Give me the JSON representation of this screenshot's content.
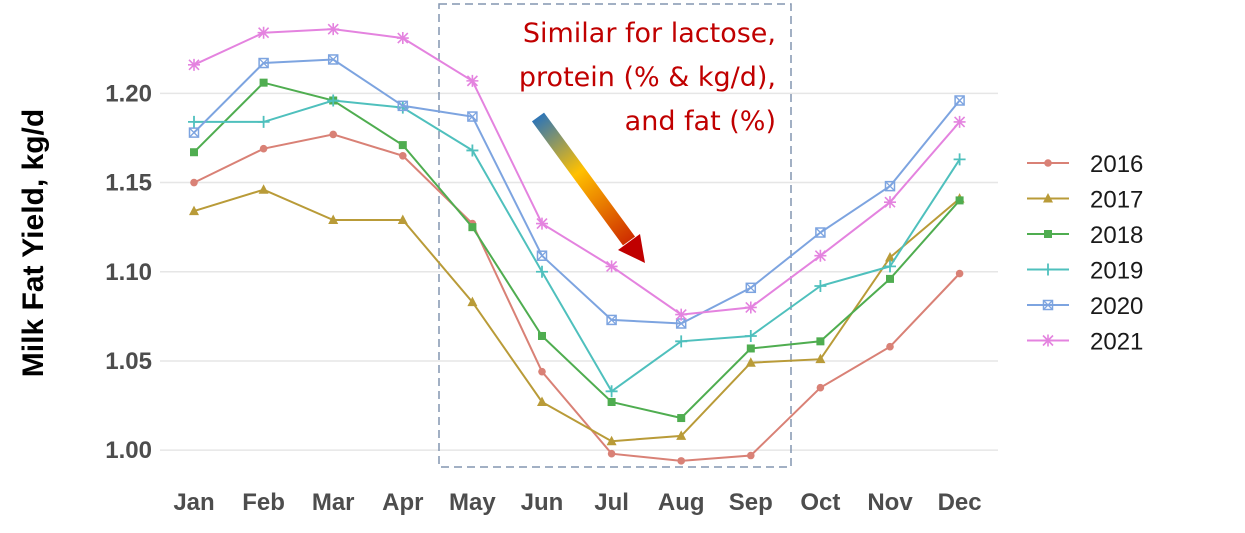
{
  "chart_data": {
    "type": "line",
    "ylabel": "Milk Fat Yield, kg/d",
    "xlabel": "",
    "categories": [
      "Jan",
      "Feb",
      "Mar",
      "Apr",
      "May",
      "Jun",
      "Jul",
      "Aug",
      "Sep",
      "Oct",
      "Nov",
      "Dec"
    ],
    "ylim": [
      0.99,
      1.24
    ],
    "yticks": [
      1.0,
      1.05,
      1.1,
      1.15,
      1.2
    ],
    "ytick_labels": [
      "1.00",
      "1.05",
      "1.10",
      "1.15",
      "1.20"
    ],
    "grid": true,
    "legend_position": "right",
    "series": [
      {
        "name": "2016",
        "color": "#d98176",
        "marker": "circle",
        "values": [
          1.15,
          1.169,
          1.177,
          1.165,
          1.127,
          1.044,
          0.998,
          0.994,
          0.997,
          1.035,
          1.058,
          1.099
        ]
      },
      {
        "name": "2017",
        "color": "#b99b38",
        "marker": "triangle",
        "values": [
          1.134,
          1.146,
          1.129,
          1.129,
          1.083,
          1.027,
          1.005,
          1.008,
          1.049,
          1.051,
          1.108,
          1.141
        ]
      },
      {
        "name": "2018",
        "color": "#4fad50",
        "marker": "square",
        "values": [
          1.167,
          1.206,
          1.196,
          1.171,
          1.125,
          1.064,
          1.027,
          1.018,
          1.057,
          1.061,
          1.096,
          1.14
        ]
      },
      {
        "name": "2019",
        "color": "#4fc0bd",
        "marker": "plus",
        "values": [
          1.184,
          1.184,
          1.196,
          1.192,
          1.168,
          1.1,
          1.033,
          1.061,
          1.064,
          1.092,
          1.103,
          1.163
        ]
      },
      {
        "name": "2020",
        "color": "#7da4e0",
        "marker": "boxx",
        "values": [
          1.178,
          1.217,
          1.219,
          1.193,
          1.187,
          1.109,
          1.073,
          1.071,
          1.091,
          1.122,
          1.148,
          1.196
        ]
      },
      {
        "name": "2021",
        "color": "#e483df",
        "marker": "star",
        "values": [
          1.216,
          1.234,
          1.236,
          1.231,
          1.207,
          1.127,
          1.103,
          1.076,
          1.08,
          1.109,
          1.139,
          1.184
        ]
      }
    ],
    "annotation": {
      "lines": [
        "Similar for lactose,",
        "protein (% & kg/d),",
        "and fat (%)"
      ],
      "highlight_range": [
        "May",
        "Sep"
      ],
      "highlight_border_color": "#8496b0",
      "arrow_gradient": [
        "#2e75b6",
        "#ffc000",
        "#c00000"
      ]
    }
  }
}
